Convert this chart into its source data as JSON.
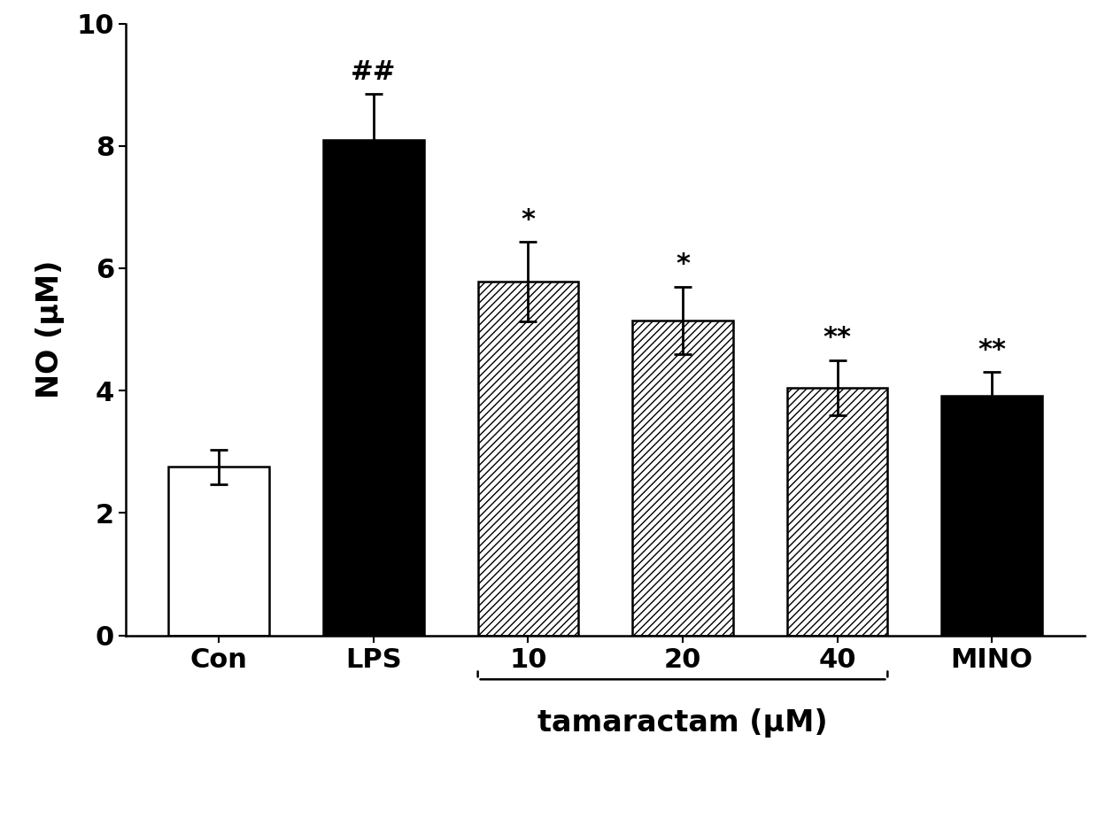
{
  "categories": [
    "Con",
    "LPS",
    "10",
    "20",
    "40",
    "MINO"
  ],
  "values": [
    2.75,
    8.1,
    5.78,
    5.15,
    4.05,
    3.92
  ],
  "errors": [
    0.28,
    0.75,
    0.65,
    0.55,
    0.45,
    0.38
  ],
  "bar_styles": [
    "white",
    "black",
    "hatch",
    "hatch",
    "hatch",
    "black"
  ],
  "hatch_pattern": "////",
  "significance": [
    "",
    "##",
    "*",
    "*",
    "**",
    "**"
  ],
  "xlabel_main": "tamaractam (μM)",
  "ylabel": "NO (μM)",
  "ylim": [
    0,
    10
  ],
  "yticks": [
    0,
    2,
    4,
    6,
    8,
    10
  ],
  "bar_edge_color": "#000000",
  "bar_linewidth": 1.8,
  "figsize": [
    12.4,
    9.25
  ],
  "dpi": 100,
  "font_size_ticks": 22,
  "font_size_labels": 24,
  "font_size_significance": 22,
  "background_color": "#ffffff"
}
